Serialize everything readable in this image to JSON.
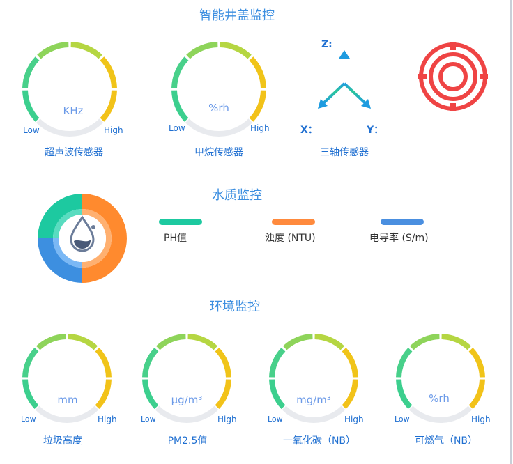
{
  "sections": {
    "manhole": "智能井盖监控",
    "water": "水质监控",
    "environment": "环境监控"
  },
  "gauges": {
    "ultrasonic": {
      "unit": "KHz",
      "low": "Low",
      "high": "High",
      "caption": "超声波传感器"
    },
    "methane": {
      "unit": "%rh",
      "low": "Low",
      "high": "High",
      "caption": "甲烷传感器"
    },
    "garbage": {
      "unit": "mm",
      "low": "Low",
      "high": "High",
      "caption": "垃圾高度"
    },
    "pm25": {
      "unit": "μg/m³",
      "low": "Low",
      "high": "High",
      "caption": "PM2.5值"
    },
    "co": {
      "unit": "mg/m³",
      "low": "Low",
      "high": "High",
      "caption": "一氧化碳（NB）"
    },
    "combustible": {
      "unit": "%rh",
      "low": "Low",
      "high": "High",
      "caption": "可燃气（NB）"
    }
  },
  "triaxial": {
    "z": "Z:",
    "x": "X：",
    "y": "Y：",
    "caption": "三轴传感器"
  },
  "water_legend": [
    {
      "label": "PH值",
      "color": "#1dc9a0"
    },
    {
      "label": "浊度 (NTU)",
      "color": "#ff8a3d"
    },
    {
      "label": "电导率 (S/m)",
      "color": "#4a8fe0"
    }
  ],
  "colors": {
    "accent": "#3d8fe0",
    "target": "#ef4444",
    "arrow": "#1e9be0"
  },
  "icons": [
    "target-icon",
    "water-drop-icon",
    "three-axis-icon"
  ]
}
